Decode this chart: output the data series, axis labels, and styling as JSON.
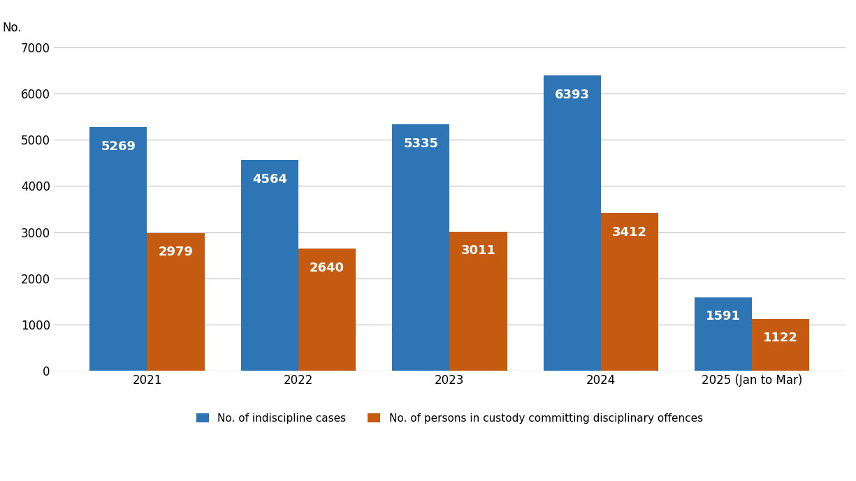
{
  "categories": [
    "2021",
    "2022",
    "2023",
    "2024",
    "2025 (Jan to Mar)"
  ],
  "series": [
    {
      "label": "No. of indiscipline cases",
      "values": [
        5269,
        4564,
        5335,
        6393,
        1591
      ],
      "color": "#2e75b6"
    },
    {
      "label": "No. of persons in custody committing disciplinary offences",
      "values": [
        2979,
        2640,
        3011,
        3412,
        1122
      ],
      "color": "#c55a11"
    }
  ],
  "ylabel": "No.",
  "ylim": [
    0,
    7000
  ],
  "yticks": [
    0,
    1000,
    2000,
    3000,
    4000,
    5000,
    6000,
    7000
  ],
  "bar_width": 0.38,
  "label_color": "#ffffff",
  "label_fontsize": 13,
  "tick_fontsize": 12,
  "legend_fontsize": 11,
  "background_color": "#ffffff",
  "grid_color": "#bbbbbb"
}
